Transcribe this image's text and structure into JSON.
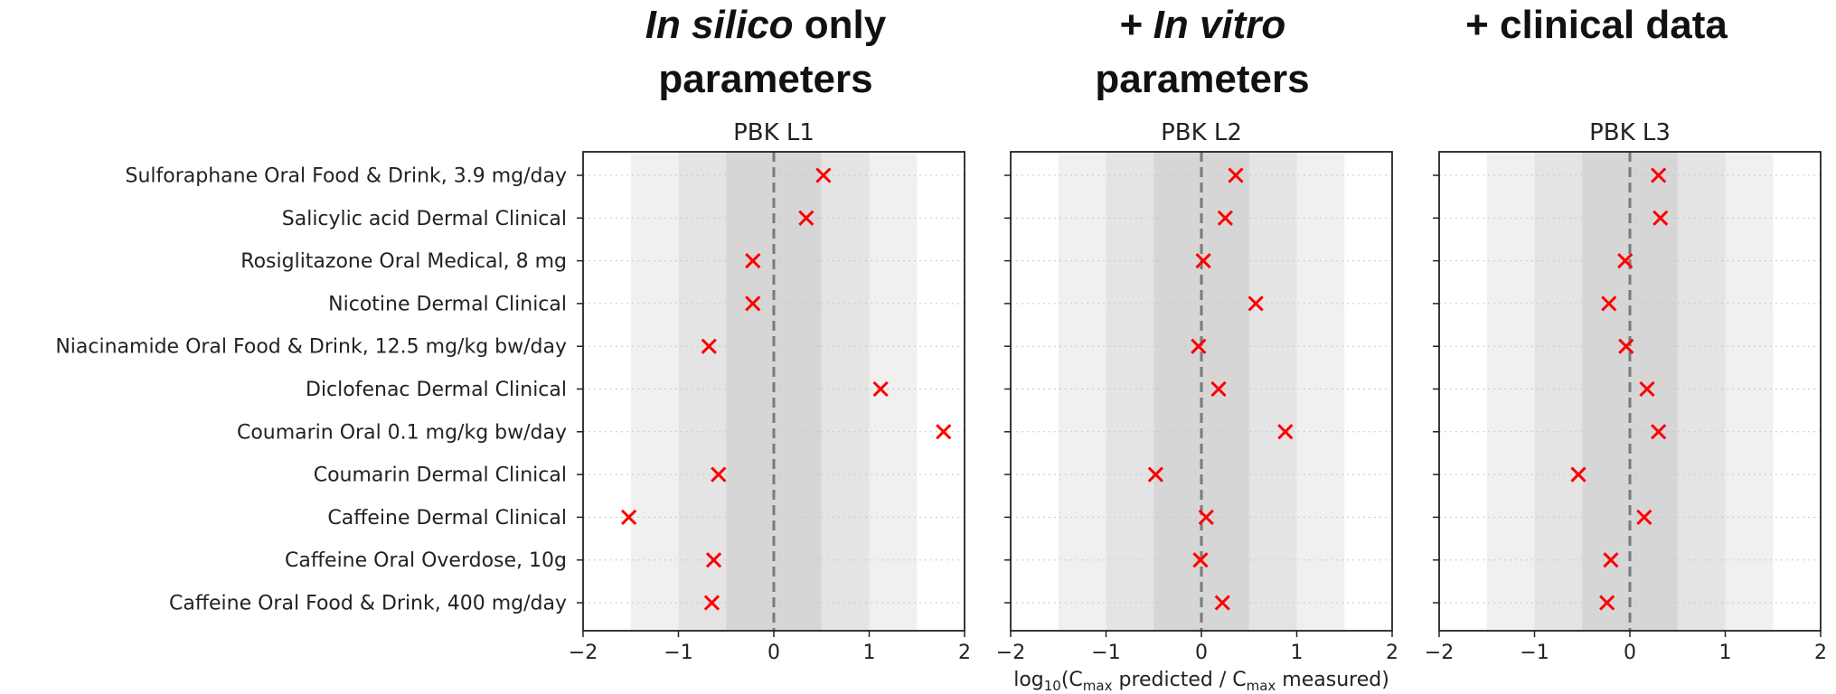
{
  "headers": [
    {
      "italic": "In silico",
      "rest": " only",
      "line2": "parameters"
    },
    {
      "italic": "+ In vitro",
      "rest": "",
      "line2": "parameters"
    },
    {
      "italic": "",
      "rest": "+ clinical data",
      "line2": ""
    }
  ],
  "chart_data": {
    "type": "scatter",
    "categories": [
      "Sulforaphane Oral Food & Drink, 3.9 mg/day",
      "Salicylic acid Dermal Clinical",
      "Rosiglitazone Oral Medical, 8 mg",
      "Nicotine Dermal Clinical",
      "Niacinamide Oral Food & Drink, 12.5 mg/kg bw/day",
      "Diclofenac Dermal Clinical",
      "Coumarin Oral 0.1 mg/kg bw/day",
      "Coumarin Dermal Clinical",
      "Caffeine Dermal Clinical",
      "Caffeine Oral Overdose, 10g",
      "Caffeine Oral Food & Drink, 400 mg/day"
    ],
    "panels": [
      {
        "title": "PBK L1",
        "values": [
          0.52,
          0.34,
          -0.22,
          -0.22,
          -0.68,
          1.12,
          1.78,
          -0.58,
          -1.52,
          -0.63,
          -0.65
        ]
      },
      {
        "title": "PBK L2",
        "values": [
          0.36,
          0.25,
          0.02,
          0.57,
          -0.03,
          0.18,
          0.88,
          -0.48,
          0.05,
          -0.01,
          0.22
        ]
      },
      {
        "title": "PBK L3",
        "values": [
          0.3,
          0.32,
          -0.05,
          -0.22,
          -0.04,
          0.18,
          0.3,
          -0.54,
          0.15,
          -0.2,
          -0.24
        ]
      }
    ],
    "x_ticks": [
      "−2",
      "−1",
      "0",
      "1",
      "2"
    ],
    "xlim": [
      -2,
      2
    ],
    "xlabel": {
      "pre": "log",
      "sub1": "10",
      "mid1": "(C",
      "sub2": "max",
      "mid2": " predicted / C",
      "sub3": "max",
      "post": " measured)"
    },
    "bands": [
      1.5,
      1.0,
      0.5
    ],
    "band_colors": [
      "#f0f0f0",
      "#e4e4e4",
      "#d6d6d6"
    ],
    "reference_line": 0,
    "marker": "x",
    "marker_color": "#ff0000",
    "grid": "horizontal dotted"
  }
}
